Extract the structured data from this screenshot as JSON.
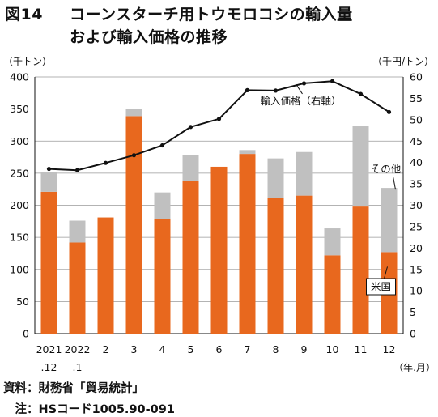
{
  "title": {
    "number": "図14",
    "line1": "コーンスターチ用トウモロコシの輸入量",
    "line2": "および輸入価格の推移"
  },
  "chart_data": {
    "type": "bar",
    "categories": [
      {
        "top": "2021",
        "bottom": ".12"
      },
      {
        "top": "2022",
        "bottom": ".1"
      },
      {
        "top": "2",
        "bottom": ""
      },
      {
        "top": "3",
        "bottom": ""
      },
      {
        "top": "4",
        "bottom": ""
      },
      {
        "top": "5",
        "bottom": ""
      },
      {
        "top": "6",
        "bottom": ""
      },
      {
        "top": "7",
        "bottom": ""
      },
      {
        "top": "8",
        "bottom": ""
      },
      {
        "top": "9",
        "bottom": ""
      },
      {
        "top": "10",
        "bottom": ""
      },
      {
        "top": "11",
        "bottom": ""
      },
      {
        "top": "12",
        "bottom": ""
      }
    ],
    "x_unit": "（年.月）",
    "y_left": {
      "unit": "（千トン）",
      "min": 0,
      "max": 400,
      "step": 50
    },
    "y_right": {
      "unit": "（千円/トン）",
      "min": 0,
      "max": 60,
      "step": 5
    },
    "series": [
      {
        "name": "米国",
        "kind": "bar",
        "axis": "left",
        "color": "#e8681e",
        "values": [
          221,
          142,
          181,
          339,
          178,
          238,
          260,
          280,
          211,
          215,
          122,
          198,
          127
        ]
      },
      {
        "name": "その他",
        "kind": "bar",
        "axis": "left",
        "color": "#c0c0c0",
        "values": [
          31,
          34,
          0,
          11,
          42,
          40,
          0,
          6,
          62,
          68,
          42,
          125,
          100
        ]
      },
      {
        "name": "輸入価格（右軸）",
        "kind": "line",
        "axis": "right",
        "color": "#111111",
        "values": [
          38.5,
          38.2,
          39.9,
          41.7,
          44.0,
          48.3,
          50.2,
          56.9,
          56.8,
          58.5,
          59.0,
          56.0,
          51.8
        ]
      }
    ],
    "grid": true
  },
  "footer": {
    "source": "資料：財務省「貿易統計」",
    "note": "　注：HSコード1005.90-091"
  }
}
